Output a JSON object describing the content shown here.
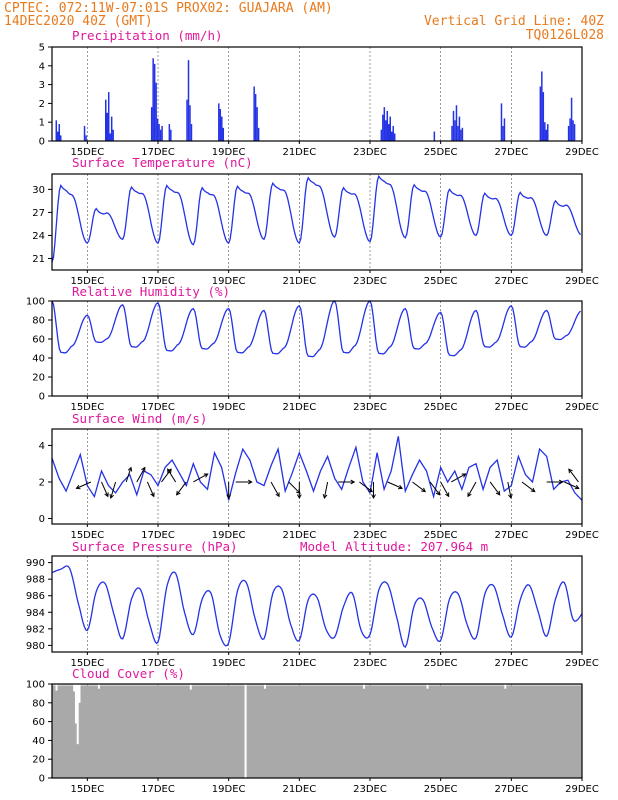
{
  "header": {
    "line1_left": "CPTEC:  072:11W-07:01S  PROX02: GUAJARA (AM)",
    "line2_left": "14DEC2020 40Z (GMT)",
    "line2_right": "Vertical Grid Line: 40Z",
    "line3_right": "TQ0126L028"
  },
  "colors": {
    "header": "#e87b1e",
    "panel_title": "#e0189c",
    "line": "#2432e6",
    "bar": "#2432e6",
    "cloud": "#a9a9a9",
    "arrow": "#000000"
  },
  "chart_data": [
    {
      "type": "bar",
      "title": "Precipitation  (mm/h)",
      "x_labels": [
        "15DEC",
        "17DEC",
        "19DEC",
        "21DEC",
        "23DEC",
        "25DEC",
        "27DEC",
        "29DEC"
      ],
      "ylim": [
        0,
        5
      ],
      "yticks": [
        0,
        1,
        2,
        3,
        4,
        5
      ],
      "grid": "vertical dashed",
      "events": [
        {
          "day": 14.1,
          "values": [
            1.1,
            0.5,
            0.9,
            0.3
          ]
        },
        {
          "day": 14.9,
          "values": [
            0.8,
            0.3
          ]
        },
        {
          "day": 15.5,
          "values": [
            2.2,
            1.5,
            2.6,
            0.4,
            1.3,
            0.6
          ]
        },
        {
          "day": 16.8,
          "values": [
            1.8,
            4.4,
            4.1,
            3.1,
            1.2,
            0.9,
            0.6,
            0.8
          ]
        },
        {
          "day": 17.3,
          "values": [
            0.9,
            0.6
          ]
        },
        {
          "day": 17.8,
          "values": [
            2.2,
            4.3,
            1.9,
            0.9
          ]
        },
        {
          "day": 18.7,
          "values": [
            2.0,
            1.7,
            1.3,
            0.7
          ]
        },
        {
          "day": 19.7,
          "values": [
            2.9,
            2.5,
            1.8,
            0.7
          ]
        },
        {
          "day": 23.3,
          "values": [
            0.6,
            1.4,
            1.8,
            1.1,
            1.6,
            0.9,
            1.3,
            0.5,
            0.8,
            0.4
          ]
        },
        {
          "day": 24.8,
          "values": [
            0.5
          ]
        },
        {
          "day": 25.3,
          "values": [
            0.8,
            1.6,
            1.1,
            1.9,
            0.8,
            1.3,
            0.6,
            0.7
          ]
        },
        {
          "day": 26.7,
          "values": [
            2.0,
            0.8,
            1.2
          ]
        },
        {
          "day": 27.8,
          "values": [
            2.9,
            3.7,
            2.6,
            1.0,
            0.6,
            0.9
          ]
        },
        {
          "day": 28.6,
          "values": [
            0.8,
            1.2,
            2.3,
            1.1,
            0.9
          ]
        }
      ]
    },
    {
      "type": "line",
      "title": "Surface Temperature  (nC)",
      "x_labels": [
        "15DEC",
        "17DEC",
        "19DEC",
        "21DEC",
        "23DEC",
        "25DEC",
        "27DEC",
        "29DEC"
      ],
      "ylim": [
        19.5,
        32
      ],
      "yticks": [
        21,
        24,
        27,
        30
      ],
      "grid": "vertical dashed",
      "daily": [
        {
          "max": 30.5,
          "min": 20.5
        },
        {
          "max": 27.5,
          "min": 23.0
        },
        {
          "max": 30.3,
          "min": 23.5
        },
        {
          "max": 30.5,
          "min": 23.0
        },
        {
          "max": 30.2,
          "min": 22.8
        },
        {
          "max": 30.4,
          "min": 23.0
        },
        {
          "max": 30.8,
          "min": 23.5
        },
        {
          "max": 31.5,
          "min": 23.0
        },
        {
          "max": 30.2,
          "min": 23.8
        },
        {
          "max": 31.7,
          "min": 23.2
        },
        {
          "max": 30.6,
          "min": 23.7
        },
        {
          "max": 30.0,
          "min": 23.8
        },
        {
          "max": 29.5,
          "min": 24.0
        },
        {
          "max": 29.6,
          "min": 24.0
        },
        {
          "max": 28.5,
          "min": 24.0
        }
      ]
    },
    {
      "type": "line",
      "title": "Relative Humidity  (%)",
      "x_labels": [
        "15DEC",
        "17DEC",
        "19DEC",
        "21DEC",
        "23DEC",
        "25DEC",
        "27DEC",
        "29DEC"
      ],
      "ylim": [
        0,
        100
      ],
      "yticks": [
        0,
        20,
        40,
        60,
        80,
        100
      ],
      "grid": "vertical dashed",
      "daily": [
        {
          "max": 100,
          "min": 46
        },
        {
          "max": 85,
          "min": 57
        },
        {
          "max": 96,
          "min": 52
        },
        {
          "max": 98,
          "min": 48
        },
        {
          "max": 92,
          "min": 50
        },
        {
          "max": 92,
          "min": 46
        },
        {
          "max": 90,
          "min": 45
        },
        {
          "max": 95,
          "min": 42
        },
        {
          "max": 100,
          "min": 46
        },
        {
          "max": 100,
          "min": 45
        },
        {
          "max": 92,
          "min": 50
        },
        {
          "max": 88,
          "min": 43
        },
        {
          "max": 90,
          "min": 52
        },
        {
          "max": 95,
          "min": 52
        },
        {
          "max": 90,
          "min": 60
        }
      ]
    },
    {
      "type": "line",
      "title": "Surface Wind  (m/s)",
      "x_labels": [
        "15DEC",
        "17DEC",
        "19DEC",
        "21DEC",
        "23DEC",
        "25DEC",
        "27DEC",
        "29DEC"
      ],
      "ylim": [
        -0.3,
        4.9
      ],
      "yticks": [
        0,
        2,
        4
      ],
      "grid": "vertical dashed",
      "series": {
        "x_days": [
          14.0,
          14.2,
          14.4,
          14.6,
          14.8,
          15.0,
          15.2,
          15.4,
          15.6,
          15.8,
          16.0,
          16.2,
          16.4,
          16.6,
          16.8,
          17.0,
          17.2,
          17.4,
          17.6,
          17.8,
          18.0,
          18.2,
          18.4,
          18.6,
          18.8,
          19.0,
          19.2,
          19.4,
          19.6,
          19.8,
          20.0,
          20.2,
          20.4,
          20.6,
          20.8,
          21.0,
          21.2,
          21.4,
          21.6,
          21.8,
          22.0,
          22.2,
          22.4,
          22.6,
          22.8,
          23.0,
          23.2,
          23.4,
          23.6,
          23.8,
          24.0,
          24.2,
          24.4,
          24.6,
          24.8,
          25.0,
          25.2,
          25.4,
          25.6,
          25.8,
          26.0,
          26.2,
          26.4,
          26.6,
          26.8,
          27.0,
          27.2,
          27.4,
          27.6,
          27.8,
          28.0,
          28.2,
          28.4,
          28.6,
          28.8,
          29.0
        ],
        "values": [
          3.3,
          2.2,
          1.5,
          2.5,
          3.5,
          1.8,
          1.2,
          2.6,
          1.8,
          1.4,
          2.0,
          2.4,
          1.3,
          2.6,
          2.4,
          1.8,
          2.8,
          3.2,
          2.5,
          1.8,
          3.0,
          2.0,
          1.6,
          3.6,
          2.8,
          1.0,
          2.5,
          3.8,
          3.2,
          2.0,
          1.8,
          2.9,
          3.8,
          1.5,
          2.5,
          3.6,
          2.6,
          1.5,
          2.6,
          3.4,
          2.2,
          1.6,
          2.8,
          3.9,
          2.0,
          1.4,
          3.6,
          1.6,
          2.6,
          4.5,
          1.5,
          2.4,
          3.2,
          2.6,
          1.2,
          2.8,
          2.0,
          2.6,
          1.6,
          2.8,
          3.0,
          1.6,
          2.8,
          3.2,
          1.5,
          1.8,
          3.4,
          2.4,
          2.0,
          3.8,
          3.4,
          1.6,
          2.0,
          2.1,
          1.4,
          1.0
        ]
      },
      "arrows": [
        {
          "day": 15.1,
          "u": -0.9,
          "v": -0.4
        },
        {
          "day": 15.4,
          "u": 0.4,
          "v": -0.9
        },
        {
          "day": 15.8,
          "u": -0.3,
          "v": -1.0
        },
        {
          "day": 16.1,
          "u": 0.3,
          "v": 0.9
        },
        {
          "day": 16.4,
          "u": 0.5,
          "v": 0.9
        },
        {
          "day": 16.7,
          "u": 0.4,
          "v": -0.9
        },
        {
          "day": 17.1,
          "u": 0.6,
          "v": 0.8
        },
        {
          "day": 17.5,
          "u": -0.5,
          "v": 0.8
        },
        {
          "day": 17.8,
          "u": -0.6,
          "v": -0.8
        },
        {
          "day": 18.0,
          "u": 0.9,
          "v": 0.5
        },
        {
          "day": 19.0,
          "u": 0.0,
          "v": -1.0
        },
        {
          "day": 19.2,
          "u": 1.0,
          "v": 0.0
        },
        {
          "day": 20.2,
          "u": 0.5,
          "v": -0.9
        },
        {
          "day": 20.7,
          "u": 0.7,
          "v": -0.7
        },
        {
          "day": 21.0,
          "u": 0.0,
          "v": -1.0
        },
        {
          "day": 21.8,
          "u": -0.2,
          "v": -1.0
        },
        {
          "day": 22.1,
          "u": 1.0,
          "v": 0.0
        },
        {
          "day": 22.7,
          "u": 0.8,
          "v": -0.6
        },
        {
          "day": 23.1,
          "u": 0.0,
          "v": -1.0
        },
        {
          "day": 23.5,
          "u": 0.9,
          "v": -0.4
        },
        {
          "day": 24.2,
          "u": 0.8,
          "v": -0.6
        },
        {
          "day": 24.7,
          "u": 0.6,
          "v": -0.8
        },
        {
          "day": 25.0,
          "u": 0.5,
          "v": -0.9
        },
        {
          "day": 25.3,
          "u": 0.9,
          "v": 0.5
        },
        {
          "day": 26.0,
          "u": -0.5,
          "v": -0.9
        },
        {
          "day": 26.4,
          "u": 0.6,
          "v": -0.8
        },
        {
          "day": 26.9,
          "u": 0.2,
          "v": -1.0
        },
        {
          "day": 27.3,
          "u": 0.8,
          "v": -0.6
        },
        {
          "day": 28.0,
          "u": 1.0,
          "v": 0.0
        },
        {
          "day": 28.5,
          "u": 0.9,
          "v": -0.4
        },
        {
          "day": 28.9,
          "u": -0.6,
          "v": 0.8
        }
      ]
    },
    {
      "type": "line",
      "title": "Surface Pressure  (hPa)",
      "subtitle": "Model Altitude: 207.964 m",
      "x_labels": [
        "15DEC",
        "17DEC",
        "19DEC",
        "21DEC",
        "23DEC",
        "25DEC",
        "27DEC",
        "29DEC"
      ],
      "ylim": [
        979.2,
        990.8
      ],
      "yticks": [
        980,
        982,
        984,
        986,
        988,
        990
      ],
      "grid": "vertical dashed",
      "series": {
        "x_days": [
          14.0,
          14.25,
          14.5,
          14.75,
          15.0,
          15.25,
          15.5,
          15.75,
          16.0,
          16.25,
          16.5,
          16.75,
          17.0,
          17.25,
          17.5,
          17.75,
          18.0,
          18.25,
          18.5,
          18.75,
          19.0,
          19.25,
          19.5,
          19.75,
          20.0,
          20.25,
          20.5,
          20.75,
          21.0,
          21.25,
          21.5,
          21.75,
          22.0,
          22.25,
          22.5,
          22.75,
          23.0,
          23.25,
          23.5,
          23.75,
          24.0,
          24.25,
          24.5,
          24.75,
          25.0,
          25.25,
          25.5,
          25.75,
          26.0,
          26.25,
          26.5,
          26.75,
          27.0,
          27.25,
          27.5,
          27.75,
          28.0,
          28.25,
          28.5,
          28.75,
          29.0
        ],
        "values": [
          988.8,
          989.2,
          989.3,
          985.0,
          981.8,
          986.5,
          987.5,
          983.8,
          980.8,
          985.6,
          986.8,
          982.8,
          980.4,
          987.1,
          988.7,
          984.0,
          981.3,
          985.6,
          986.3,
          981.3,
          980.3,
          986.6,
          987.6,
          983.2,
          980.8,
          986.3,
          986.8,
          982.6,
          980.6,
          985.5,
          985.8,
          982.0,
          981.0,
          984.7,
          986.3,
          981.8,
          981.3,
          986.7,
          987.4,
          983.5,
          979.8,
          984.8,
          985.5,
          982.2,
          980.6,
          985.6,
          986.2,
          982.5,
          980.9,
          986.2,
          987.2,
          983.7,
          981.0,
          985.5,
          987.3,
          984.2,
          981.1,
          985.6,
          987.6,
          983.1,
          983.8
        ]
      }
    },
    {
      "type": "bar",
      "title": "Cloud Cover  (%)",
      "x_labels": [
        "15DEC",
        "17DEC",
        "19DEC",
        "21DEC",
        "23DEC",
        "25DEC",
        "27DEC",
        "29DEC"
      ],
      "ylim": [
        0,
        100
      ],
      "yticks": [
        0,
        20,
        40,
        60,
        80,
        100
      ],
      "grid": "vertical dashed",
      "typical_percent": 98,
      "dips": [
        {
          "day": 14.1,
          "percent": 93
        },
        {
          "day": 14.6,
          "percent": 92
        },
        {
          "day": 14.65,
          "percent": 58
        },
        {
          "day": 14.7,
          "percent": 36
        },
        {
          "day": 14.75,
          "percent": 80
        },
        {
          "day": 15.3,
          "percent": 95
        },
        {
          "day": 17.9,
          "percent": 94
        },
        {
          "day": 19.45,
          "percent": 0
        },
        {
          "day": 20.0,
          "percent": 95
        },
        {
          "day": 22.8,
          "percent": 95
        },
        {
          "day": 24.6,
          "percent": 95
        },
        {
          "day": 26.8,
          "percent": 95
        }
      ]
    }
  ]
}
